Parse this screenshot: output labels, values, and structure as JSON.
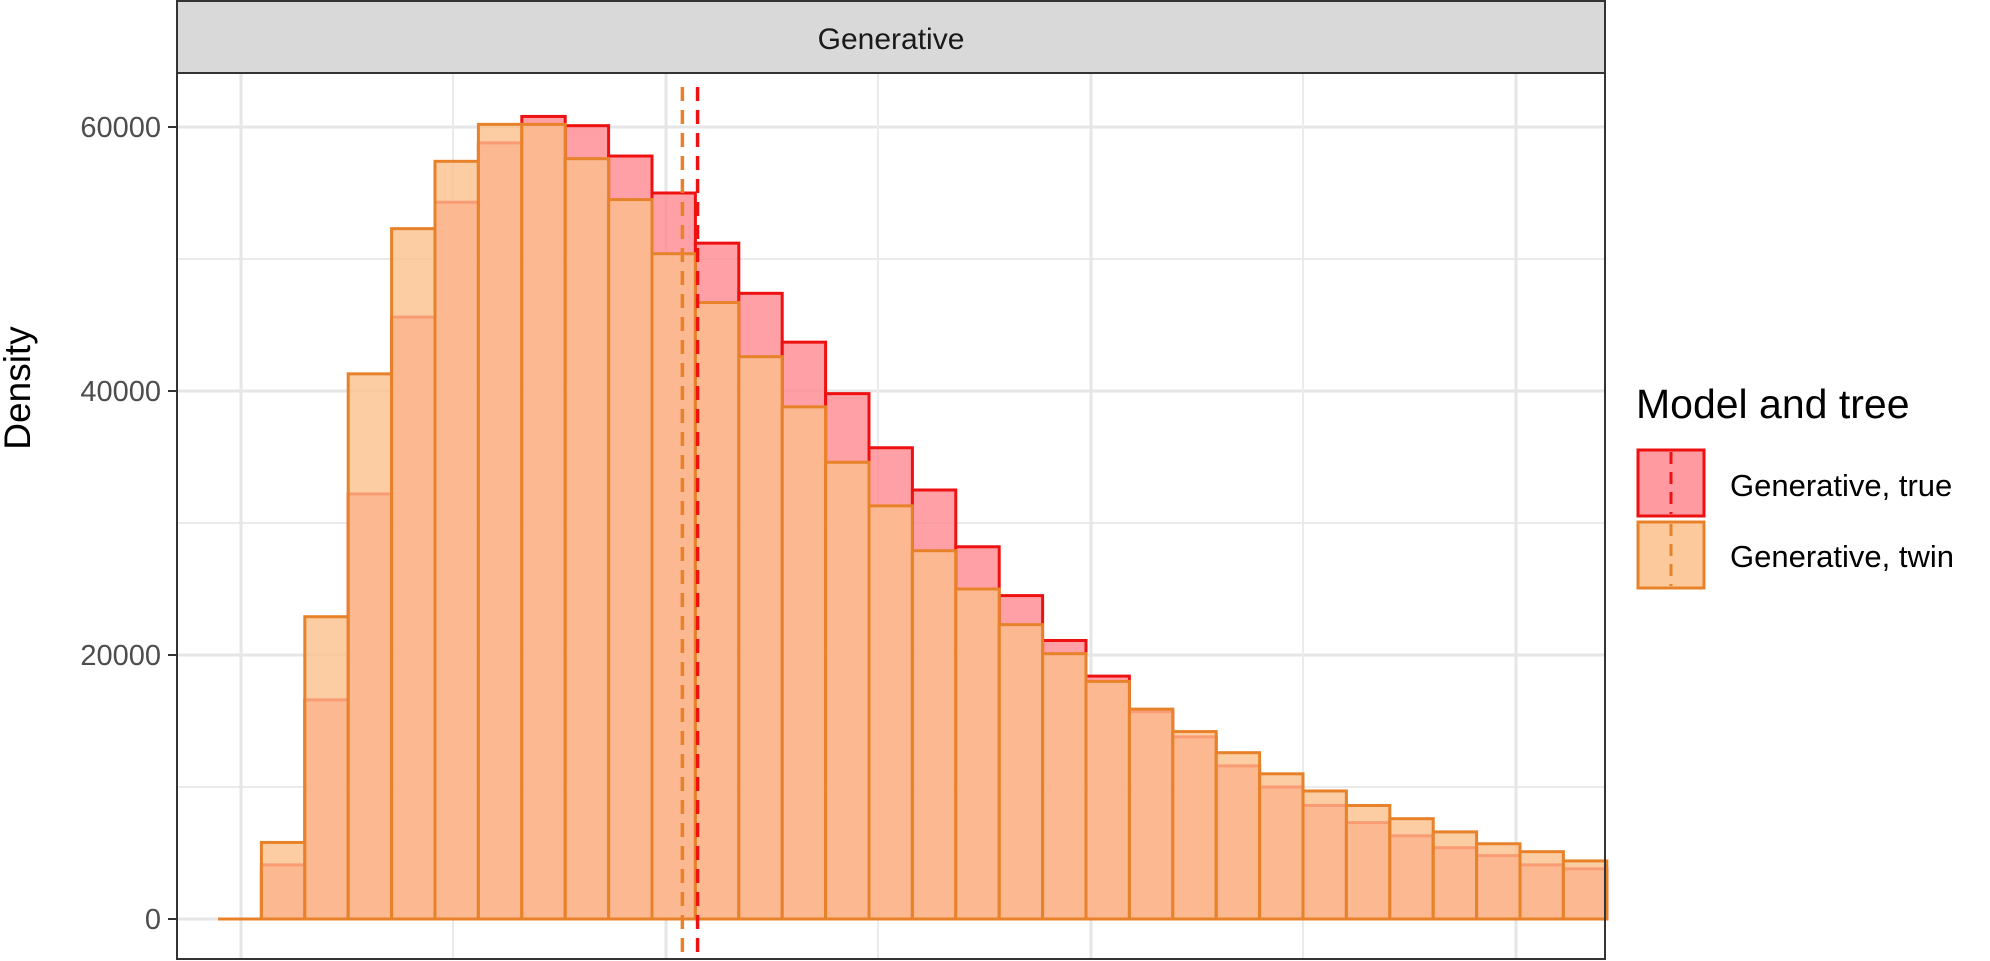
{
  "chart_data": {
    "type": "histogram",
    "facet": "Generative",
    "ylabel": "Density",
    "xlabel": "",
    "ylim": [
      0,
      64000
    ],
    "yticks": [
      0,
      20000,
      40000,
      60000
    ],
    "grid": true,
    "legend": {
      "title": "Model and tree",
      "position": "right",
      "entries": [
        "Generative, true",
        "Generative, twin"
      ]
    },
    "bins": 32,
    "series": [
      {
        "name": "Generative, true",
        "stroke": "#ee1111",
        "fill": "#ff8890",
        "mean_line_bin": 11.05,
        "values": [
          0,
          4100,
          16600,
          32200,
          45600,
          54300,
          58800,
          60800,
          60100,
          57800,
          55000,
          51200,
          47400,
          43700,
          39800,
          35700,
          32500,
          28200,
          24500,
          21100,
          18400,
          15700,
          13800,
          11600,
          10000,
          8600,
          7300,
          6300,
          5400,
          4800,
          4100,
          3800
        ]
      },
      {
        "name": "Generative, twin",
        "stroke": "#e8822a",
        "fill": "#fbbf8c",
        "mean_line_bin": 10.7,
        "values": [
          0,
          5800,
          22900,
          41300,
          52300,
          57400,
          60200,
          60200,
          57600,
          54500,
          50400,
          46700,
          42600,
          38800,
          34600,
          31300,
          27900,
          25000,
          22300,
          20100,
          18000,
          15900,
          14200,
          12600,
          11000,
          9700,
          8600,
          7600,
          6600,
          5700,
          5100,
          4400
        ]
      }
    ]
  }
}
